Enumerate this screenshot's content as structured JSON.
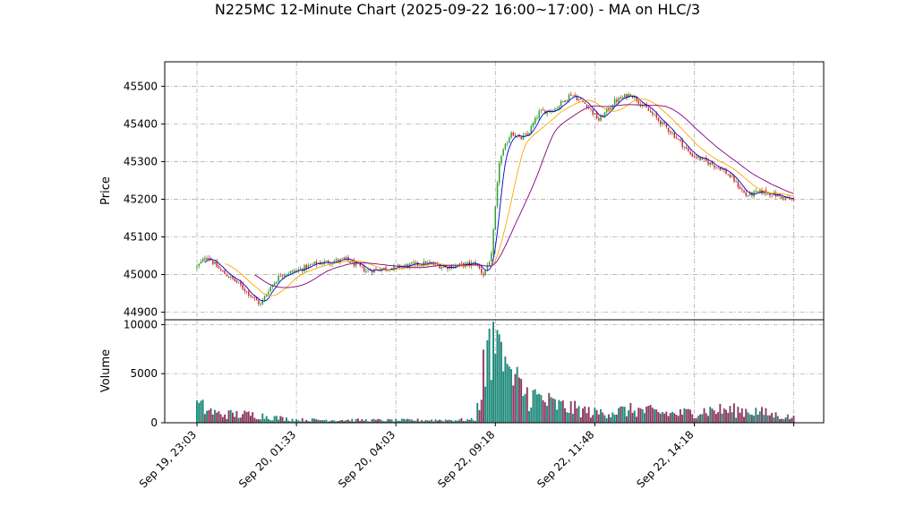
{
  "chart_data": {
    "type": "candlestick",
    "title": "N225MC 12-Minute Chart (2025-09-22 16:00~17:00) - MA on HLC/3",
    "price_panel": {
      "ylabel": "Price",
      "yticks": [
        44900,
        45000,
        45100,
        45200,
        45300,
        45400,
        45500
      ],
      "ylim": [
        44880,
        45565
      ],
      "grid": true
    },
    "volume_panel": {
      "ylabel": "Volume",
      "yticks": [
        0,
        5000,
        10000
      ],
      "ylim": [
        0,
        10500
      ],
      "grid": true
    },
    "x_tick_labels": [
      "Sep 19, 23:03",
      "Sep 20, 01:33",
      "Sep 20, 04:03",
      "Sep 22, 09:18",
      "Sep 22, 11:48",
      "Sep 22, 14:18"
    ],
    "x_tick_positions": [
      0,
      50,
      100,
      150,
      200,
      250
    ],
    "bar_count": 301,
    "colors": {
      "up": "#2ca02c",
      "down": "#d62728",
      "vol_up": "#1f8a7a",
      "vol_down": "#8b3a62",
      "ma_short": "#0000cc",
      "ma_mid": "#ffa500",
      "ma_long": "#800080"
    },
    "moving_average_periods": [
      5,
      15,
      30
    ],
    "price_path_keypoints": [
      [
        0,
        45020
      ],
      [
        5,
        45050
      ],
      [
        12,
        45010
      ],
      [
        20,
        44980
      ],
      [
        28,
        44940
      ],
      [
        32,
        44920
      ],
      [
        36,
        44960
      ],
      [
        42,
        45000
      ],
      [
        50,
        45010
      ],
      [
        60,
        45030
      ],
      [
        75,
        45040
      ],
      [
        85,
        45010
      ],
      [
        100,
        45020
      ],
      [
        115,
        45030
      ],
      [
        125,
        45020
      ],
      [
        140,
        45030
      ],
      [
        144,
        45000
      ],
      [
        148,
        45050
      ],
      [
        152,
        45300
      ],
      [
        158,
        45380
      ],
      [
        162,
        45360
      ],
      [
        166,
        45370
      ],
      [
        172,
        45430
      ],
      [
        180,
        45440
      ],
      [
        188,
        45480
      ],
      [
        196,
        45450
      ],
      [
        202,
        45410
      ],
      [
        210,
        45460
      ],
      [
        218,
        45480
      ],
      [
        226,
        45440
      ],
      [
        232,
        45410
      ],
      [
        240,
        45370
      ],
      [
        248,
        45320
      ],
      [
        256,
        45300
      ],
      [
        264,
        45280
      ],
      [
        270,
        45250
      ],
      [
        276,
        45210
      ],
      [
        284,
        45220
      ],
      [
        292,
        45210
      ],
      [
        300,
        45195
      ]
    ],
    "volume_keypoints": [
      [
        0,
        1800
      ],
      [
        10,
        900
      ],
      [
        30,
        800
      ],
      [
        40,
        500
      ],
      [
        50,
        300
      ],
      [
        100,
        250
      ],
      [
        140,
        300
      ],
      [
        145,
        6000
      ],
      [
        148,
        9000
      ],
      [
        152,
        7500
      ],
      [
        156,
        5000
      ],
      [
        165,
        3000
      ],
      [
        180,
        1800
      ],
      [
        200,
        1000
      ],
      [
        220,
        1300
      ],
      [
        240,
        900
      ],
      [
        260,
        1300
      ],
      [
        280,
        1200
      ],
      [
        290,
        800
      ],
      [
        300,
        500
      ]
    ]
  }
}
